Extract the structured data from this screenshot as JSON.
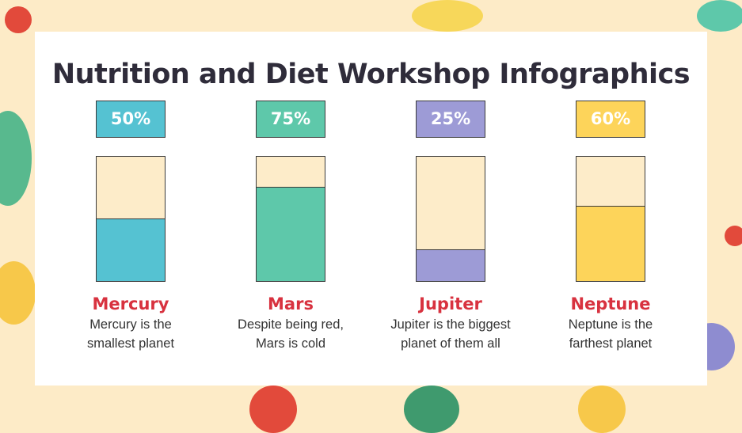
{
  "title": "Nutrition and Diet Workshop Infographics",
  "colors": {
    "background": "#fdebc7",
    "empty": "#fdecc9",
    "label": "#d8323f"
  },
  "chart_data": {
    "type": "bar",
    "categories": [
      "Mercury",
      "Mars",
      "Jupiter",
      "Neptune"
    ],
    "values": [
      50,
      75,
      25,
      60
    ],
    "labels": [
      "50%",
      "75%",
      "25%",
      "60%"
    ],
    "ylim": [
      0,
      100
    ],
    "colors": [
      "#55c2d2",
      "#5ec8aa",
      "#9d9bd6",
      "#fdd45a"
    ],
    "descriptions": [
      [
        "Mercury is the",
        "smallest planet"
      ],
      [
        "Despite being red,",
        "Mars is cold"
      ],
      [
        "Jupiter is the biggest",
        "planet of them all"
      ],
      [
        "Neptune is the",
        "farthest planet"
      ]
    ]
  }
}
